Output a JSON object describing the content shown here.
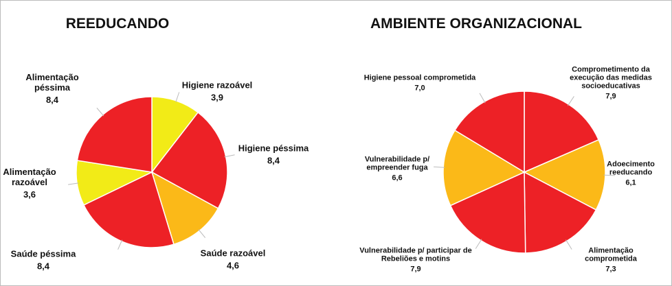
{
  "chart_data": [
    {
      "type": "pie",
      "title": "REEDUCANDO",
      "categories": [
        "Higiene razoável",
        "Higiene péssima",
        "Saúde razoável",
        "Saúde péssima",
        "Alimentação razoável",
        "Alimentação péssima"
      ],
      "values": [
        3.9,
        8.4,
        4.6,
        8.4,
        3.6,
        8.4
      ],
      "value_labels": [
        "3,9",
        "8,4",
        "4,6",
        "8,4",
        "3,6",
        "8,4"
      ],
      "colors": [
        "#f2eb17",
        "#ed2126",
        "#fbb918",
        "#ed2126",
        "#f2eb17",
        "#ed2126"
      ]
    },
    {
      "type": "pie",
      "title": "AMBIENTE ORGANIZACIONAL",
      "categories": [
        "Comprometimento da execução das medidas socioeducativas",
        "Adoecimento reeducando",
        "Alimentação comprometida",
        "Vulnerabilidade p/ participar de Rebeliões e motins",
        "Vulnerabilidade p/ empreender fuga",
        "Higiene pessoal comprometida"
      ],
      "values": [
        7.9,
        6.1,
        7.3,
        7.9,
        6.6,
        7.0
      ],
      "value_labels": [
        "7,9",
        "6,1",
        "7,3",
        "7,9",
        "6,6",
        "7,0"
      ],
      "colors": [
        "#ed2126",
        "#fbb918",
        "#ed2126",
        "#ed2126",
        "#fbb918",
        "#ed2126"
      ]
    }
  ]
}
